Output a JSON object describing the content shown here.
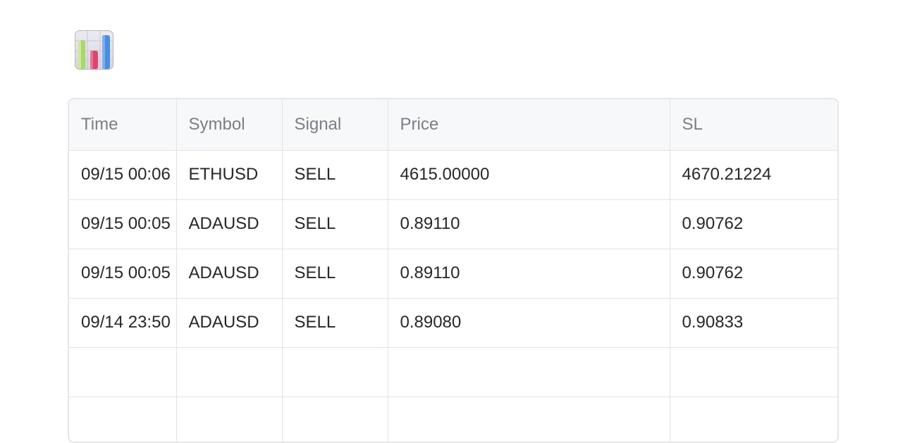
{
  "icon": "bar-chart-icon",
  "table": {
    "columns": [
      "Time",
      "Symbol",
      "Signal",
      "Price",
      "SL"
    ],
    "rows": [
      [
        "09/15 00:06",
        "ETHUSD",
        "SELL",
        "4615.00000",
        "4670.21224"
      ],
      [
        "09/15 00:05",
        "ADAUSD",
        "SELL",
        "0.89110",
        "0.90762"
      ],
      [
        "09/15 00:05",
        "ADAUSD",
        "SELL",
        "0.89110",
        "0.90762"
      ],
      [
        "09/14 23:50",
        "ADAUSD",
        "SELL",
        "0.89080",
        "0.90833"
      ],
      [
        "",
        "",
        "",
        "",
        ""
      ],
      [
        "",
        "",
        "",
        "",
        ""
      ]
    ]
  },
  "colors": {
    "header_bg": "#f7f8fa",
    "header_text": "#7c7e86",
    "cell_text": "#26272d",
    "border": "#e3e3e6"
  }
}
